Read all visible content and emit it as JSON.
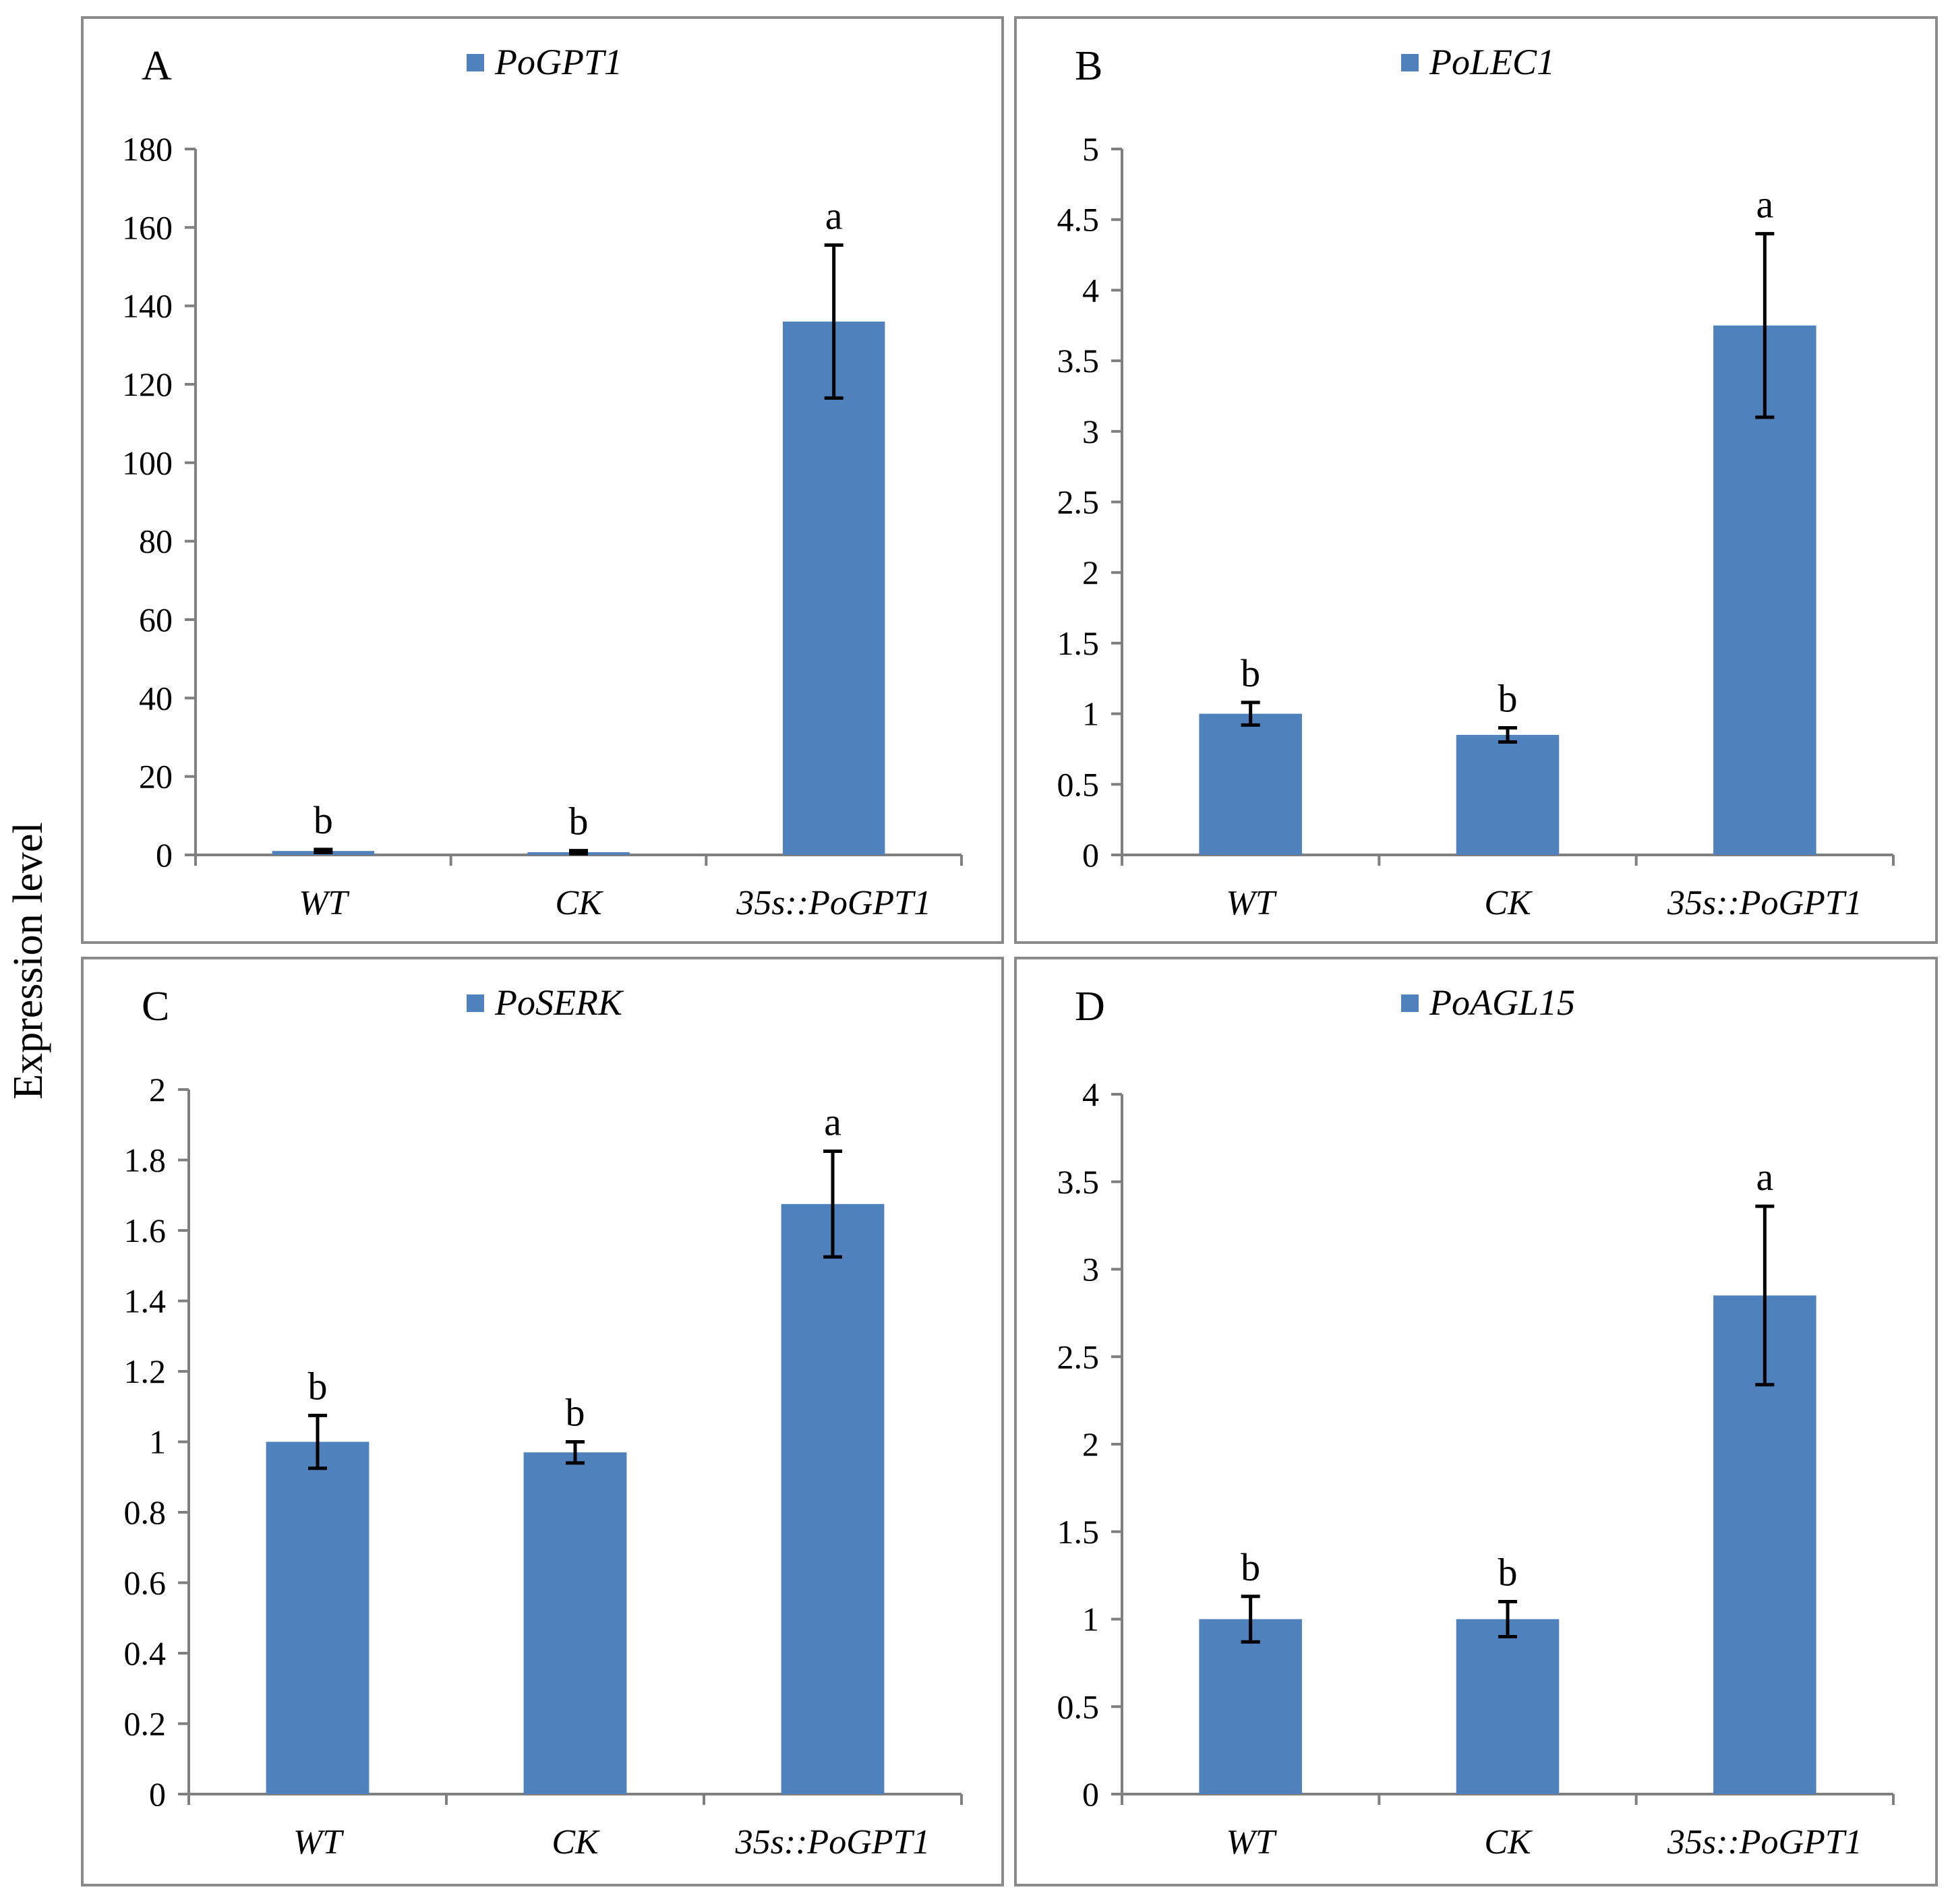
{
  "figure": {
    "y_axis_title": "Expression level"
  },
  "colors": {
    "bar": "#4f81bd",
    "frame": "#8a8a8a",
    "axis": "#7f7f7f"
  },
  "chart_data": [
    {
      "type": "bar",
      "panel": "A",
      "legend": "PoGPT1",
      "categories": [
        "WT",
        "CK",
        "35s::PoGPT1"
      ],
      "values": [
        1.0,
        0.7,
        136
      ],
      "errors": [
        0.4,
        0.4,
        19.5
      ],
      "significance": [
        "b",
        "b",
        "a"
      ],
      "ylim": [
        0,
        180
      ],
      "yticks": [
        0,
        20,
        40,
        60,
        80,
        100,
        120,
        140,
        160,
        180
      ],
      "ytick_labels": [
        "0",
        "20",
        "40",
        "60",
        "80",
        "100",
        "120",
        "140",
        "160",
        "180"
      ]
    },
    {
      "type": "bar",
      "panel": "B",
      "legend": "PoLEC1",
      "categories": [
        "WT",
        "CK",
        "35s::PoGPT1"
      ],
      "values": [
        1.0,
        0.85,
        3.75
      ],
      "errors": [
        0.08,
        0.05,
        0.65
      ],
      "significance": [
        "b",
        "b",
        "a"
      ],
      "ylim": [
        0,
        5
      ],
      "yticks": [
        0,
        0.5,
        1,
        1.5,
        2,
        2.5,
        3,
        3.5,
        4,
        4.5,
        5
      ],
      "ytick_labels": [
        "0",
        "0.5",
        "1",
        "1.5",
        "2",
        "2.5",
        "3",
        "3.5",
        "4",
        "4.5",
        "5"
      ]
    },
    {
      "type": "bar",
      "panel": "C",
      "legend": "PoSERK",
      "categories": [
        "WT",
        "CK",
        "35s::PoGPT1"
      ],
      "values": [
        1.0,
        0.97,
        1.675
      ],
      "errors": [
        0.075,
        0.03,
        0.15
      ],
      "significance": [
        "b",
        "b",
        "a"
      ],
      "ylim": [
        0,
        2
      ],
      "yticks": [
        0,
        0.2,
        0.4,
        0.6,
        0.8,
        1,
        1.2,
        1.4,
        1.6,
        1.8,
        2
      ],
      "ytick_labels": [
        "0",
        "0.2",
        "0.4",
        "0.6",
        "0.8",
        "1",
        "1.2",
        "1.4",
        "1.6",
        "1.8",
        "2"
      ]
    },
    {
      "type": "bar",
      "panel": "D",
      "legend": "PoAGL15",
      "categories": [
        "WT",
        "CK",
        "35s::PoGPT1"
      ],
      "values": [
        1.0,
        1.0,
        2.85
      ],
      "errors": [
        0.13,
        0.1,
        0.51
      ],
      "significance": [
        "b",
        "b",
        "a"
      ],
      "ylim": [
        0,
        4
      ],
      "yticks": [
        0,
        0.5,
        1,
        1.5,
        2,
        2.5,
        3,
        3.5,
        4
      ],
      "ytick_labels": [
        "0",
        "0.5",
        "1",
        "1.5",
        "2",
        "2.5",
        "3",
        "3.5",
        "4"
      ]
    }
  ]
}
